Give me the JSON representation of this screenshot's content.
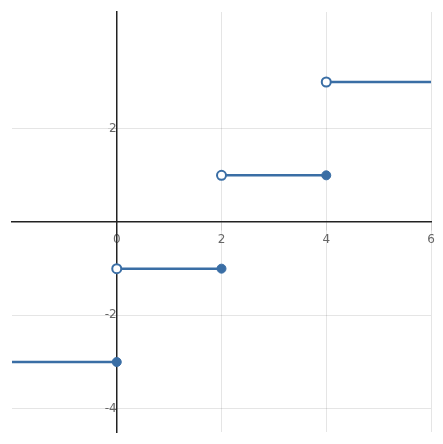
{
  "chart_data": {
    "type": "line",
    "xlim": [
      -2,
      6
    ],
    "ylim": [
      -4.5,
      4.5
    ],
    "xticks": [
      0,
      2,
      4,
      6
    ],
    "yticks": [
      -4,
      -2,
      2
    ],
    "grid": true,
    "series": [
      {
        "type": "line",
        "x": [
          -2.0,
          0
        ],
        "values": [
          -3,
          -3
        ],
        "color": "#3A6EA5",
        "marker": "none"
      },
      {
        "type": "line",
        "x": [
          0,
          2
        ],
        "values": [
          -1,
          -1
        ],
        "color": "#3A6EA5",
        "marker": "none"
      },
      {
        "type": "line",
        "x": [
          2,
          4
        ],
        "values": [
          1,
          1
        ],
        "color": "#3A6EA5",
        "marker": "none"
      },
      {
        "type": "line",
        "x": [
          4,
          6.0
        ],
        "values": [
          3,
          3
        ],
        "color": "#3A6EA5",
        "marker": "none"
      },
      {
        "type": "scatter",
        "x": [
          0,
          2,
          4
        ],
        "values": [
          -3,
          -1,
          1
        ],
        "color": "#3A6EA5",
        "marker": "circle"
      },
      {
        "type": "scatter",
        "x": [
          0,
          2,
          4
        ],
        "values": [
          -1,
          1,
          3
        ],
        "color": "#3A6EA5",
        "marker": "open_circle"
      }
    ]
  }
}
